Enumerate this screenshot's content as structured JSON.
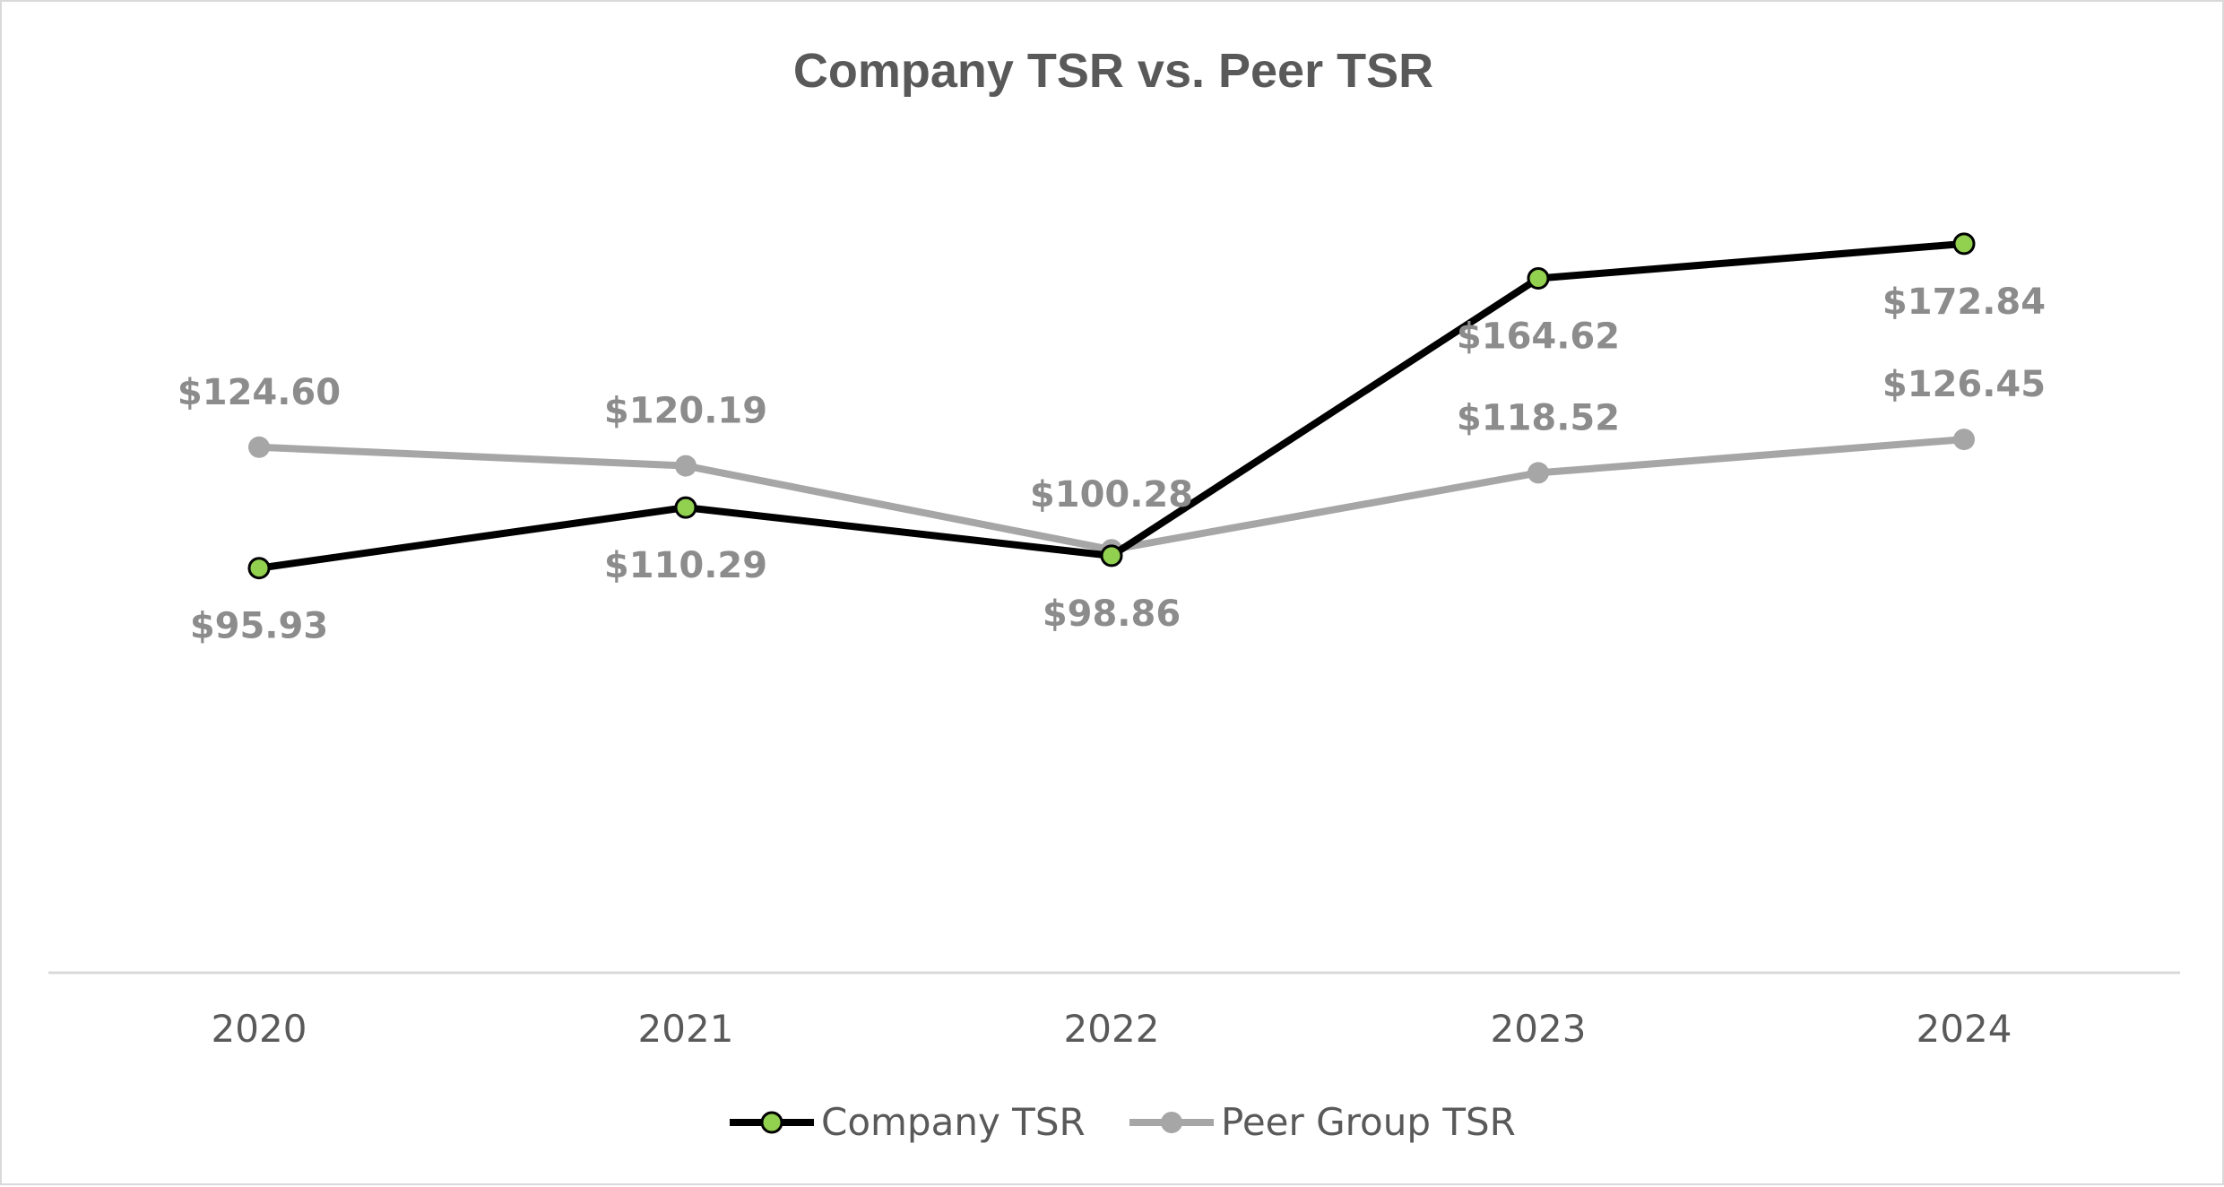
{
  "chart_data": {
    "type": "line",
    "title": "Company TSR vs. Peer TSR",
    "categories": [
      "2020",
      "2021",
      "2022",
      "2023",
      "2024"
    ],
    "series": [
      {
        "name": "Company TSR",
        "values": [
          95.93,
          110.29,
          98.86,
          164.62,
          172.84
        ],
        "labels": [
          "$95.93",
          "$110.29",
          "$98.86",
          "$164.62",
          "$172.84"
        ],
        "color": "#000000",
        "marker_color": "#92d050",
        "label_position": "below"
      },
      {
        "name": "Peer Group TSR",
        "values": [
          124.6,
          120.19,
          100.28,
          118.52,
          126.45
        ],
        "labels": [
          "$124.60",
          "$120.19",
          "$100.28",
          "$118.52",
          "$126.45"
        ],
        "color": "#a6a6a6",
        "marker_color": "#a6a6a6",
        "label_position": "above"
      }
    ],
    "xlabel": "",
    "ylabel": "",
    "ylim": [
      0,
      220
    ],
    "grid": false,
    "legend": "bottom",
    "axis_color": "#d9d9d9",
    "text_color": "#595959",
    "label_color": "#8c8c8c"
  }
}
